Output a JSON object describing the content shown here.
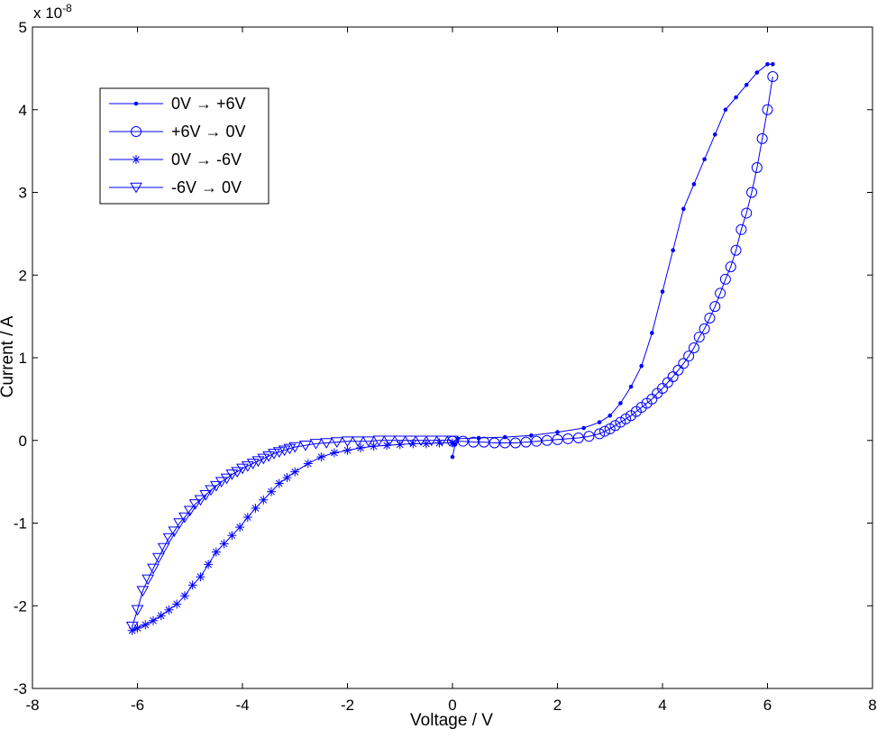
{
  "chart_data": {
    "type": "line",
    "xlabel": "Voltage / V",
    "ylabel": "Current / A",
    "y_exponent_label": "x 10",
    "y_exponent_power": "-8",
    "xlim": [
      -8,
      8
    ],
    "ylim": [
      -3,
      5
    ],
    "x_ticks": [
      "-8",
      "-6",
      "-4",
      "-2",
      "0",
      "2",
      "4",
      "6",
      "8"
    ],
    "y_ticks": [
      "-3",
      "-2",
      "-1",
      "0",
      "1",
      "2",
      "3",
      "4",
      "5"
    ],
    "grid": false,
    "legend_position": "top-left",
    "series_color": "#0000ff",
    "series": [
      {
        "name": "0V → +6V",
        "marker": "dot",
        "x": [
          0.0,
          0.05,
          0.1,
          0.5,
          1.0,
          1.5,
          2.0,
          2.5,
          2.8,
          3.0,
          3.2,
          3.4,
          3.6,
          3.8,
          4.0,
          4.2,
          4.4,
          4.6,
          4.8,
          5.0,
          5.2,
          5.4,
          5.6,
          5.8,
          6.0,
          6.1
        ],
        "y": [
          -0.2,
          -0.05,
          0.02,
          0.03,
          0.04,
          0.06,
          0.1,
          0.15,
          0.22,
          0.3,
          0.45,
          0.65,
          0.9,
          1.3,
          1.8,
          2.3,
          2.8,
          3.1,
          3.4,
          3.7,
          4.0,
          4.15,
          4.3,
          4.45,
          4.55,
          4.55
        ]
      },
      {
        "name": "+6V → 0V",
        "marker": "circle",
        "x": [
          6.1,
          6.0,
          5.9,
          5.8,
          5.7,
          5.6,
          5.5,
          5.4,
          5.3,
          5.2,
          5.1,
          5.0,
          4.9,
          4.8,
          4.7,
          4.6,
          4.5,
          4.4,
          4.3,
          4.2,
          4.1,
          4.0,
          3.9,
          3.8,
          3.7,
          3.6,
          3.5,
          3.4,
          3.3,
          3.2,
          3.1,
          3.0,
          2.9,
          2.8,
          2.6,
          2.4,
          2.2,
          2.0,
          1.8,
          1.6,
          1.4,
          1.2,
          1.0,
          0.8,
          0.6,
          0.4,
          0.2,
          0.0
        ],
        "y": [
          4.4,
          4.0,
          3.65,
          3.3,
          3.0,
          2.75,
          2.55,
          2.3,
          2.1,
          1.95,
          1.78,
          1.62,
          1.48,
          1.35,
          1.25,
          1.12,
          1.02,
          0.93,
          0.85,
          0.77,
          0.7,
          0.63,
          0.57,
          0.5,
          0.45,
          0.4,
          0.35,
          0.3,
          0.26,
          0.22,
          0.18,
          0.14,
          0.11,
          0.08,
          0.05,
          0.03,
          0.02,
          0.01,
          0.0,
          -0.01,
          -0.02,
          -0.03,
          -0.03,
          -0.03,
          -0.02,
          -0.02,
          -0.01,
          -0.01
        ]
      },
      {
        "name": "0V → -6V",
        "marker": "asterisk",
        "x": [
          0.0,
          -0.25,
          -0.5,
          -0.75,
          -1.0,
          -1.25,
          -1.5,
          -1.75,
          -2.0,
          -2.25,
          -2.5,
          -2.75,
          -3.0,
          -3.15,
          -3.3,
          -3.45,
          -3.6,
          -3.75,
          -3.9,
          -4.05,
          -4.2,
          -4.35,
          -4.5,
          -4.65,
          -4.8,
          -4.95,
          -5.1,
          -5.25,
          -5.4,
          -5.55,
          -5.7,
          -5.85,
          -6.0,
          -6.1
        ],
        "y": [
          -0.03,
          -0.03,
          -0.04,
          -0.04,
          -0.05,
          -0.06,
          -0.07,
          -0.09,
          -0.12,
          -0.15,
          -0.2,
          -0.28,
          -0.38,
          -0.45,
          -0.52,
          -0.62,
          -0.72,
          -0.82,
          -0.93,
          -1.05,
          -1.15,
          -1.25,
          -1.35,
          -1.5,
          -1.65,
          -1.75,
          -1.88,
          -1.98,
          -2.05,
          -2.12,
          -2.18,
          -2.23,
          -2.27,
          -2.3
        ]
      },
      {
        "name": "-6V → 0V",
        "marker": "triangle-down",
        "x": [
          -6.1,
          -6.0,
          -5.9,
          -5.8,
          -5.7,
          -5.6,
          -5.5,
          -5.4,
          -5.3,
          -5.2,
          -5.1,
          -5.0,
          -4.9,
          -4.8,
          -4.7,
          -4.6,
          -4.5,
          -4.4,
          -4.3,
          -4.2,
          -4.1,
          -4.0,
          -3.9,
          -3.8,
          -3.7,
          -3.6,
          -3.5,
          -3.4,
          -3.3,
          -3.2,
          -3.1,
          -3.0,
          -2.8,
          -2.6,
          -2.4,
          -2.2,
          -2.0,
          -1.8,
          -1.6,
          -1.4,
          -1.2,
          -1.0,
          -0.8,
          -0.6,
          -0.4,
          -0.2,
          0.0
        ],
        "y": [
          -2.25,
          -2.05,
          -1.82,
          -1.68,
          -1.55,
          -1.42,
          -1.3,
          -1.18,
          -1.1,
          -1.0,
          -0.93,
          -0.85,
          -0.77,
          -0.72,
          -0.66,
          -0.6,
          -0.55,
          -0.5,
          -0.46,
          -0.41,
          -0.38,
          -0.34,
          -0.31,
          -0.28,
          -0.25,
          -0.22,
          -0.19,
          -0.16,
          -0.14,
          -0.12,
          -0.1,
          -0.08,
          -0.06,
          -0.04,
          -0.03,
          -0.02,
          -0.01,
          -0.01,
          -0.01,
          0.0,
          0.0,
          0.0,
          0.0,
          0.0,
          0.0,
          0.0,
          0.0
        ]
      }
    ]
  }
}
